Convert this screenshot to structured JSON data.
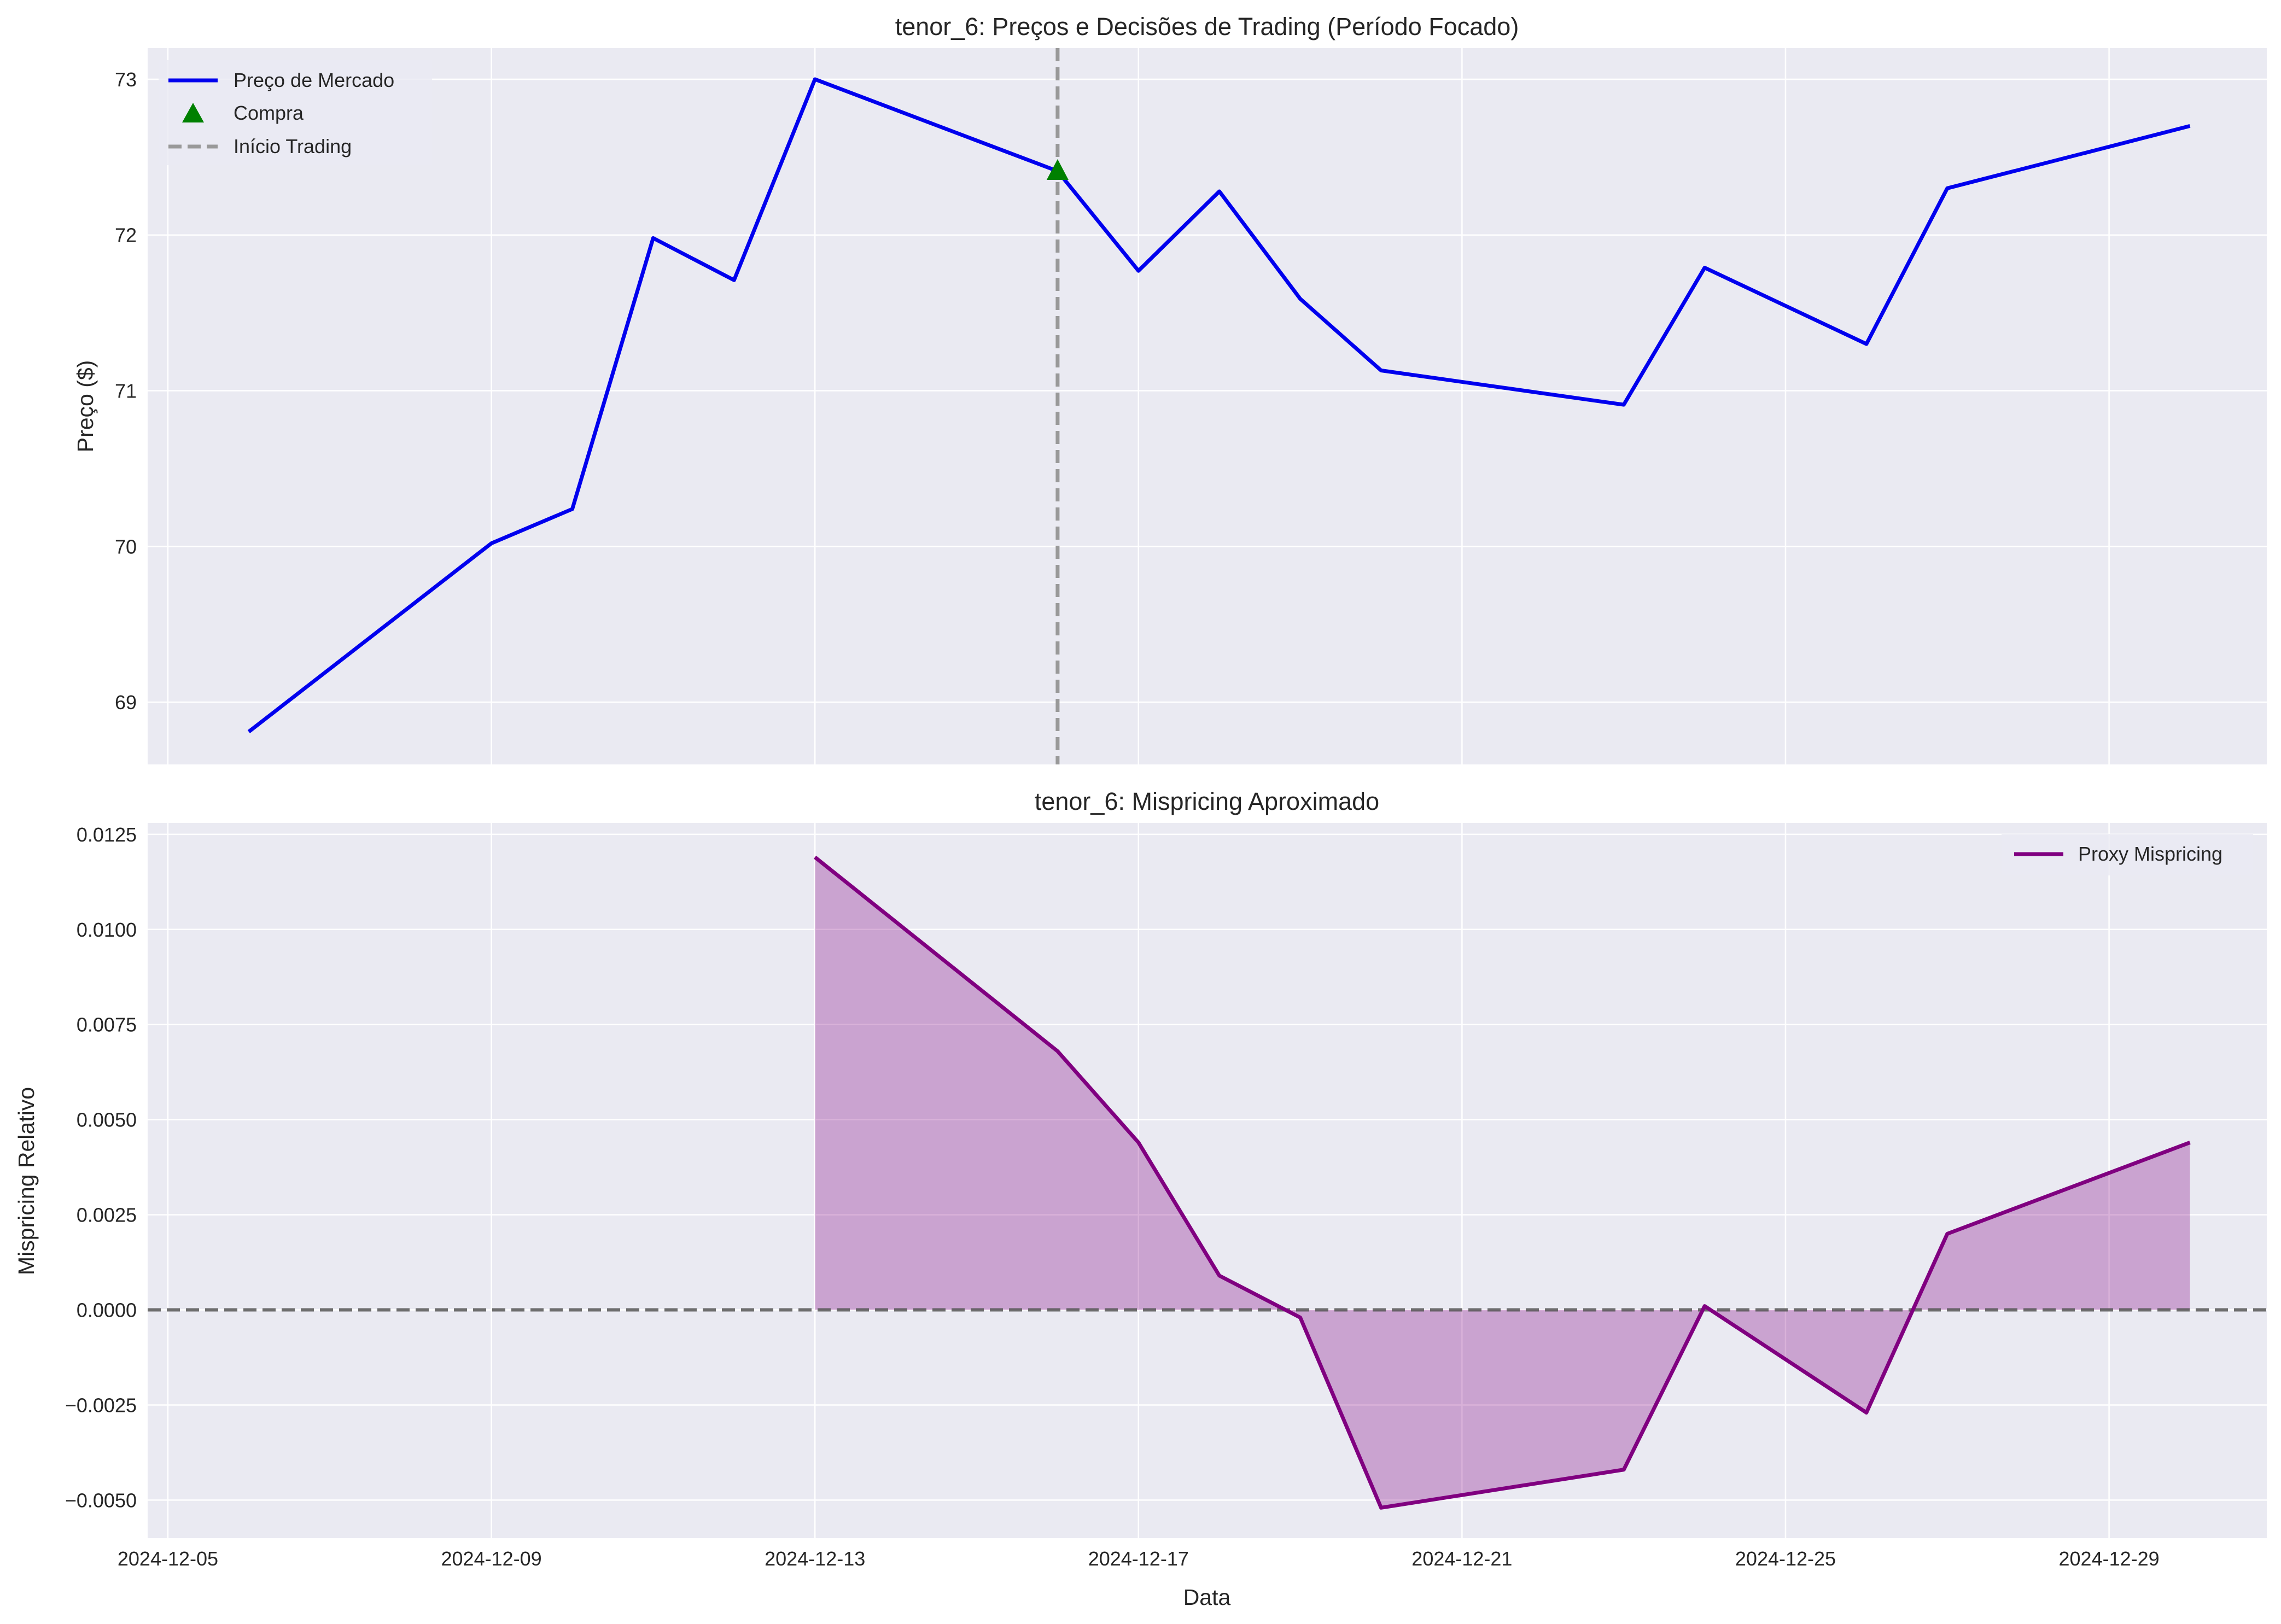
{
  "chart_data": [
    {
      "type": "line",
      "title": "tenor_6: Preços e Decisões de Trading (Período Focado)",
      "xlabel": "",
      "ylabel": "Preço ($)",
      "ylim": [
        68.6,
        73.2
      ],
      "yticks": [
        "69",
        "70",
        "71",
        "72",
        "73"
      ],
      "x_range": [
        "2024-12-05",
        "2024-12-31"
      ],
      "grid": true,
      "legend_position": "upper-left",
      "series": [
        {
          "name": "Preço de Mercado",
          "color": "#0000ee",
          "x": [
            "2024-12-06",
            "2024-12-09",
            "2024-12-10",
            "2024-12-11",
            "2024-12-12",
            "2024-12-13",
            "2024-12-16",
            "2024-12-17",
            "2024-12-18",
            "2024-12-19",
            "2024-12-20",
            "2024-12-23",
            "2024-12-24",
            "2024-12-26",
            "2024-12-27",
            "2024-12-30"
          ],
          "y": [
            68.81,
            70.02,
            70.24,
            71.98,
            71.71,
            73.0,
            72.41,
            71.77,
            72.28,
            71.59,
            71.13,
            70.91,
            71.79,
            71.3,
            72.3,
            72.7
          ]
        }
      ],
      "markers": [
        {
          "name": "Compra",
          "shape": "triangle",
          "color": "#008000",
          "x": "2024-12-16",
          "y": 72.41
        }
      ],
      "vlines": [
        {
          "name": "Início Trading",
          "x": "2024-12-16",
          "color": "#999999",
          "style": "dashed"
        }
      ]
    },
    {
      "type": "area",
      "title": "tenor_6: Mispricing Aproximado",
      "xlabel": "Data",
      "ylabel": "Mispricing Relativo",
      "ylim": [
        -0.006,
        0.0128
      ],
      "yticks": [
        "−0.0050",
        "−0.0025",
        "0.0000",
        "0.0025",
        "0.0050",
        "0.0075",
        "0.0100",
        "0.0125"
      ],
      "ytick_values": [
        -0.005,
        -0.0025,
        0.0,
        0.0025,
        0.005,
        0.0075,
        0.01,
        0.0125
      ],
      "xticks": [
        "2024-12-05",
        "2024-12-09",
        "2024-12-13",
        "2024-12-17",
        "2024-12-21",
        "2024-12-25",
        "2024-12-29"
      ],
      "x_range": [
        "2024-12-05",
        "2024-12-31"
      ],
      "grid": true,
      "legend_position": "upper-right",
      "series": [
        {
          "name": "Proxy Mispricing",
          "color": "#800080",
          "fill_color": "#800080",
          "x": [
            "2024-12-13",
            "2024-12-16",
            "2024-12-17",
            "2024-12-18",
            "2024-12-19",
            "2024-12-20",
            "2024-12-23",
            "2024-12-24",
            "2024-12-26",
            "2024-12-27",
            "2024-12-30"
          ],
          "y": [
            0.0119,
            0.0068,
            0.0044,
            0.0009,
            -0.0002,
            -0.0052,
            -0.0042,
            0.0001,
            -0.0027,
            0.002,
            0.0044
          ]
        }
      ],
      "hlines": [
        {
          "y": 0.0,
          "color": "#555555",
          "style": "dashed"
        }
      ]
    }
  ]
}
